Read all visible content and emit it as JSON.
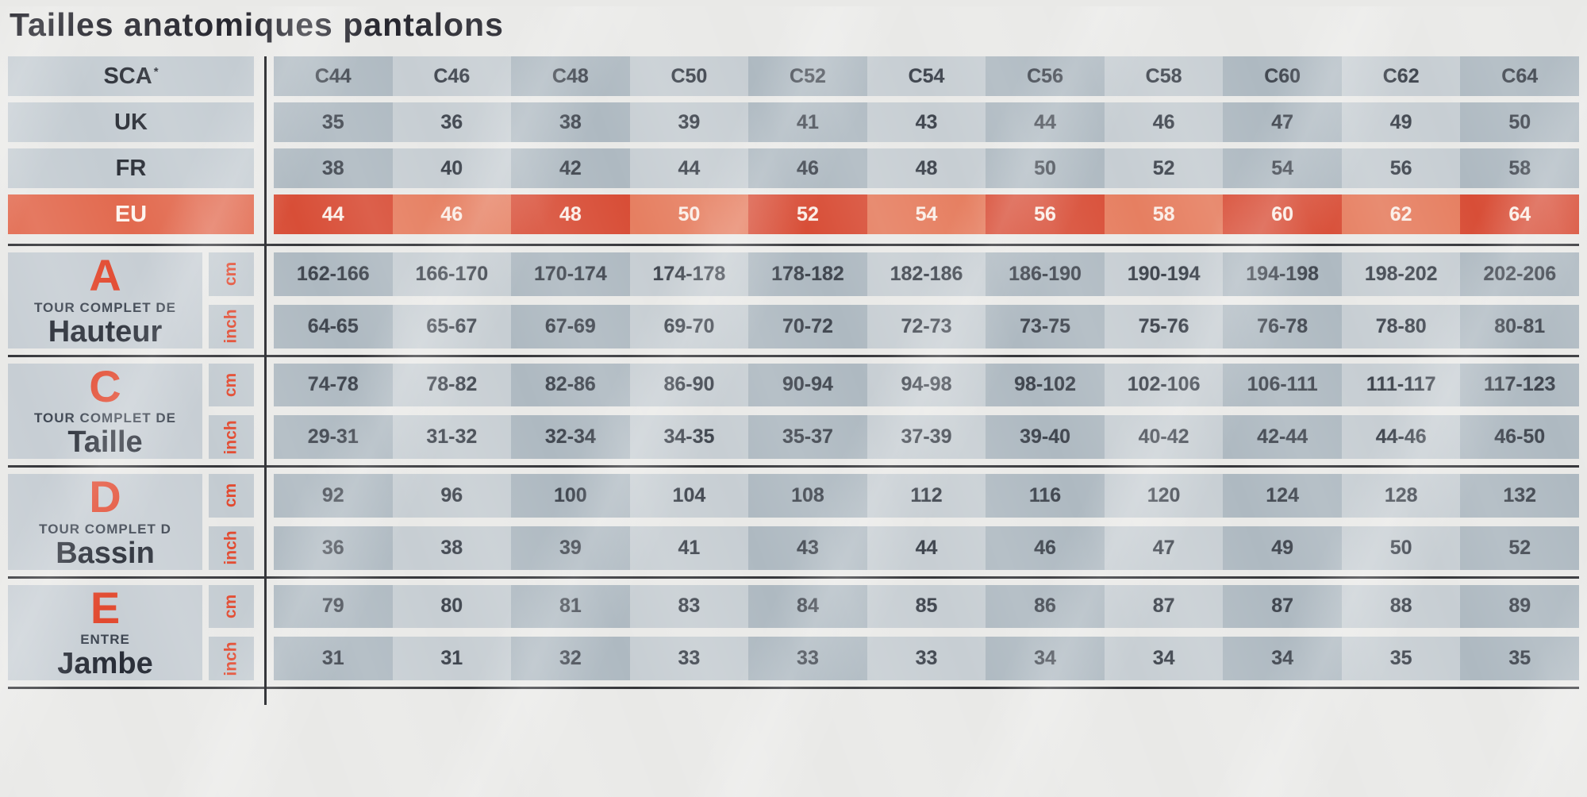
{
  "title": "Tailles anatomiques pantalons",
  "colors": {
    "accent_orange": "#e2492f",
    "eu_cell_dark": "#d84e37",
    "eu_cell_light": "#e67f61",
    "eu_label_bg": "#e26a4f",
    "cell_gray_dark": "#aeb9c1",
    "cell_gray_light": "#c7ced3",
    "divider": "#35363a",
    "background": "#e9e9e7"
  },
  "header": {
    "rows": [
      {
        "label": "SCA",
        "superscript": "*",
        "style": "gray",
        "values": [
          "C44",
          "C46",
          "C48",
          "C50",
          "C52",
          "C54",
          "C56",
          "C58",
          "C60",
          "C62",
          "C64"
        ]
      },
      {
        "label": "UK",
        "superscript": "",
        "style": "gray",
        "values": [
          "35",
          "36",
          "38",
          "39",
          "41",
          "43",
          "44",
          "46",
          "47",
          "49",
          "50"
        ]
      },
      {
        "label": "FR",
        "superscript": "",
        "style": "gray",
        "values": [
          "38",
          "40",
          "42",
          "44",
          "46",
          "48",
          "50",
          "52",
          "54",
          "56",
          "58"
        ]
      },
      {
        "label": "EU",
        "superscript": "",
        "style": "orange",
        "values": [
          "44",
          "46",
          "48",
          "50",
          "52",
          "54",
          "56",
          "58",
          "60",
          "62",
          "64"
        ]
      }
    ]
  },
  "sections": [
    {
      "letter": "A",
      "subtitle": "TOUR COMPLET DE",
      "name": "Hauteur",
      "rows": [
        {
          "unit": "cm",
          "values": [
            "162-166",
            "166-170",
            "170-174",
            "174-178",
            "178-182",
            "182-186",
            "186-190",
            "190-194",
            "194-198",
            "198-202",
            "202-206"
          ]
        },
        {
          "unit": "inch",
          "values": [
            "64-65",
            "65-67",
            "67-69",
            "69-70",
            "70-72",
            "72-73",
            "73-75",
            "75-76",
            "76-78",
            "78-80",
            "80-81"
          ]
        }
      ]
    },
    {
      "letter": "C",
      "subtitle": "TOUR COMPLET DE",
      "name": "Taille",
      "rows": [
        {
          "unit": "cm",
          "values": [
            "74-78",
            "78-82",
            "82-86",
            "86-90",
            "90-94",
            "94-98",
            "98-102",
            "102-106",
            "106-111",
            "111-117",
            "117-123"
          ]
        },
        {
          "unit": "inch",
          "values": [
            "29-31",
            "31-32",
            "32-34",
            "34-35",
            "35-37",
            "37-39",
            "39-40",
            "40-42",
            "42-44",
            "44-46",
            "46-50"
          ]
        }
      ]
    },
    {
      "letter": "D",
      "subtitle": "TOUR COMPLET D",
      "name": "Bassin",
      "rows": [
        {
          "unit": "cm",
          "values": [
            "92",
            "96",
            "100",
            "104",
            "108",
            "112",
            "116",
            "120",
            "124",
            "128",
            "132"
          ]
        },
        {
          "unit": "inch",
          "values": [
            "36",
            "38",
            "39",
            "41",
            "43",
            "44",
            "46",
            "47",
            "49",
            "50",
            "52"
          ]
        }
      ]
    },
    {
      "letter": "E",
      "subtitle": "ENTRE",
      "name": "Jambe",
      "rows": [
        {
          "unit": "cm",
          "values": [
            "79",
            "80",
            "81",
            "83",
            "84",
            "85",
            "86",
            "87",
            "87",
            "88",
            "89"
          ]
        },
        {
          "unit": "inch",
          "values": [
            "31",
            "31",
            "32",
            "33",
            "33",
            "33",
            "34",
            "34",
            "34",
            "35",
            "35"
          ]
        }
      ]
    }
  ]
}
